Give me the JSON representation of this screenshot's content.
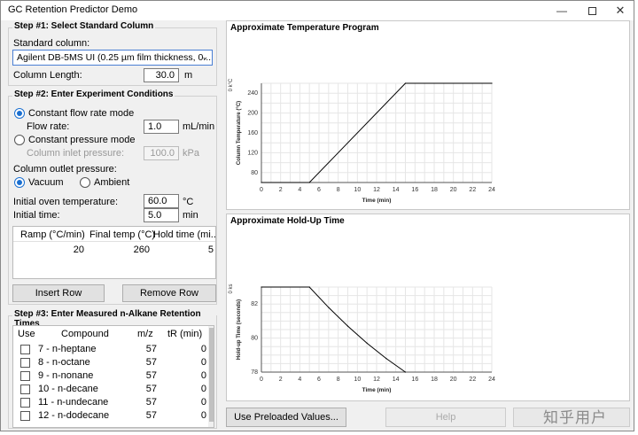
{
  "window": {
    "title": "GC Retention Predictor Demo"
  },
  "step1": {
    "title": "Step #1: Select Standard Column",
    "standard_column_label": "Standard column:",
    "standard_column_value": "Agilent DB-5MS UI (0.25 µm film thickness, 0....",
    "column_length_label": "Column Length:",
    "column_length_value": "30.0",
    "column_length_unit": "m"
  },
  "step2": {
    "title": "Step #2: Enter Experiment Conditions",
    "constant_flow_label": "Constant flow rate mode",
    "flow_rate_label": "Flow rate:",
    "flow_rate_value": "1.0",
    "flow_rate_unit": "mL/min",
    "constant_pressure_label": "Constant pressure mode",
    "inlet_pressure_label": "Column inlet pressure:",
    "inlet_pressure_value": "100.0",
    "inlet_pressure_unit": "kPa",
    "outlet_pressure_label": "Column outlet pressure:",
    "vacuum_label": "Vacuum",
    "ambient_label": "Ambient",
    "initial_temp_label": "Initial oven temperature:",
    "initial_temp_value": "60.0",
    "initial_temp_unit": "°C",
    "initial_time_label": "Initial time:",
    "initial_time_value": "5.0",
    "initial_time_unit": "min",
    "ramp_headers": [
      "Ramp (°C/min)",
      "Final temp (°C)",
      "Hold time (mi..."
    ],
    "ramp_row": [
      "20",
      "260",
      "5"
    ],
    "insert_row_label": "Insert Row",
    "remove_row_label": "Remove Row"
  },
  "step3": {
    "title": "Step #3: Enter Measured n-Alkane Retention Times",
    "headers": [
      "Use",
      "Compound",
      "m/z",
      "tR (min)"
    ],
    "rows": [
      {
        "compound": "7 - n-heptane",
        "mz": "57",
        "tr": "0"
      },
      {
        "compound": "8 - n-octane",
        "mz": "57",
        "tr": "0"
      },
      {
        "compound": "9 - n-nonane",
        "mz": "57",
        "tr": "0"
      },
      {
        "compound": "10 - n-decane",
        "mz": "57",
        "tr": "0"
      },
      {
        "compound": "11 - n-undecane",
        "mz": "57",
        "tr": "0"
      },
      {
        "compound": "12 - n-dodecane",
        "mz": "57",
        "tr": "0"
      }
    ]
  },
  "buttons": {
    "preloaded_label": "Use Preloaded Values...",
    "help_label": "Help"
  },
  "watermark": "知乎用户",
  "chart_data": [
    {
      "type": "line",
      "title": "Approximate Temperature Program",
      "xlabel": "Time (min)",
      "ylabel": "Column Temperature (°C)",
      "y_unit_label": "0 k°C",
      "x": [
        0,
        5,
        15,
        24
      ],
      "y": [
        60,
        60,
        260,
        260
      ],
      "xlim": [
        0,
        24
      ],
      "ylim": [
        60,
        260
      ],
      "xticks": [
        "0",
        "2",
        "4",
        "6",
        "8",
        "10",
        "12",
        "14",
        "16",
        "18",
        "20",
        "22",
        "24"
      ],
      "yticks": [
        "80",
        "120",
        "160",
        "200",
        "240"
      ],
      "grid": true
    },
    {
      "type": "line",
      "title": "Approximate Hold-Up Time",
      "xlabel": "Time (min)",
      "ylabel": "Hold-up Time (seconds)",
      "y_unit_label": "0 ks",
      "x": [
        0,
        5,
        7,
        9,
        11,
        13,
        15
      ],
      "y": [
        83,
        83,
        81.8,
        80.7,
        79.7,
        78.8,
        78
      ],
      "xlim": [
        0,
        24
      ],
      "ylim": [
        78,
        83
      ],
      "xticks": [
        "0",
        "2",
        "4",
        "6",
        "8",
        "10",
        "12",
        "14",
        "16",
        "18",
        "20",
        "22",
        "24"
      ],
      "yticks": [
        "78",
        "80",
        "82"
      ],
      "grid": true
    }
  ]
}
